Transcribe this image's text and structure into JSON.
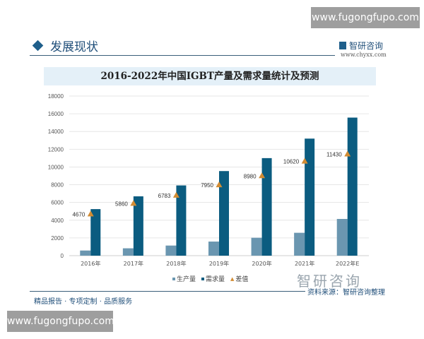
{
  "watermark_url": "www.fugongfupo.com",
  "section_title": "发展现状",
  "brand": {
    "name": "智研咨询",
    "url": "www.chyxx.com"
  },
  "footer": {
    "slogan": "精品报告 · 专项定制 · 品质服务",
    "source": "资料来源：智研咨询整理"
  },
  "colors": {
    "production": "#6a96b0",
    "demand": "#0b5c80",
    "diff": "#d28c33"
  },
  "chart_data": {
    "type": "bar",
    "title": "2016-2022年中国IGBT产量及需求量统计及预测",
    "categories": [
      "2016年",
      "2017年",
      "2018年",
      "2019年",
      "2020年",
      "2021年",
      "2022年E"
    ],
    "series": [
      {
        "name": "生产量",
        "values": [
          580,
          830,
          1140,
          1590,
          2020,
          2580,
          4140
        ]
      },
      {
        "name": "需求量",
        "values": [
          5250,
          6690,
          7920,
          9540,
          11000,
          13200,
          15570
        ]
      },
      {
        "name": "差值",
        "values": [
          4670,
          5860,
          6783,
          7950,
          8980,
          10620,
          11430
        ],
        "marker": "triangle"
      }
    ],
    "diff_labels": [
      "4670",
      "5860",
      "6783",
      "7950",
      "8980",
      "10620",
      "11430"
    ],
    "y_ticks": [
      "0",
      "2000",
      "4000",
      "6000",
      "8000",
      "10000",
      "12000",
      "14000",
      "16000",
      "18000"
    ],
    "ylim": [
      0,
      18000
    ],
    "grid": true,
    "legend_position": "bottom"
  }
}
